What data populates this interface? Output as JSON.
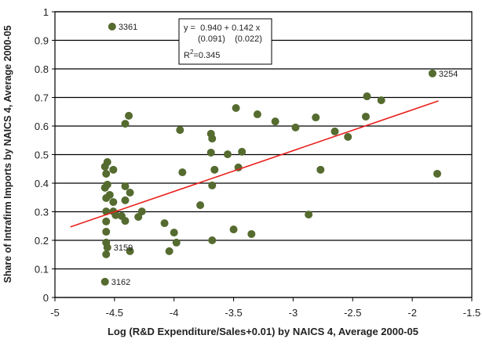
{
  "chart_data": {
    "type": "scatter",
    "x_label": "Log (R&D Expenditure/Sales+0.01) by NAICS 4, Average 2000-05",
    "y_label": "Share of Intrafirm Imports by NAICS 4, Average 2000-05",
    "xlim": [
      -5,
      -1.5
    ],
    "xticks": [
      -5,
      -4.5,
      -4,
      -3.5,
      -3,
      -2.5,
      -2,
      -1.5
    ],
    "ylim": [
      0,
      1
    ],
    "yticks": [
      0,
      0.1,
      0.2,
      0.3,
      0.4,
      0.5,
      0.6,
      0.7,
      0.8,
      0.9,
      1
    ],
    "grid": true,
    "series": [
      {
        "color": "#556b2f",
        "x": [
          -4.52,
          -1.83,
          -1.79,
          -2.38,
          -2.26,
          -2.39,
          -2.81,
          -2.65,
          -2.54,
          -2.98,
          -3.15,
          -3.3,
          -3.48,
          -2.77,
          -2.87,
          -3.43,
          -3.55,
          -3.46,
          -3.35,
          -3.5,
          -3.68,
          -3.69,
          -3.68,
          -3.69,
          -3.66,
          -3.68,
          -3.78,
          -3.95,
          -3.93,
          -4.0,
          -3.98,
          -4.04,
          -4.08,
          -4.38,
          -4.41,
          -4.37,
          -4.41,
          -4.41,
          -4.27,
          -4.3,
          -4.37,
          -4.56,
          -4.51,
          -4.57,
          -4.54,
          -4.51,
          -4.56,
          -4.57,
          -4.57,
          -4.57,
          -4.57,
          -4.57,
          -4.58,
          -4.56,
          -4.49,
          -4.44,
          -4.41,
          -4.51,
          -4.58,
          -4.58,
          -4.57
        ],
        "values": [
          0.948,
          0.784,
          0.433,
          0.704,
          0.69,
          0.633,
          0.63,
          0.581,
          0.562,
          0.595,
          0.616,
          0.641,
          0.663,
          0.447,
          0.29,
          0.51,
          0.501,
          0.455,
          0.222,
          0.238,
          0.2,
          0.573,
          0.556,
          0.507,
          0.447,
          0.392,
          0.323,
          0.586,
          0.438,
          0.227,
          0.192,
          0.162,
          0.26,
          0.636,
          0.608,
          0.367,
          0.389,
          0.34,
          0.301,
          0.282,
          0.162,
          0.474,
          0.447,
          0.433,
          0.359,
          0.334,
          0.395,
          0.301,
          0.266,
          0.23,
          0.192,
          0.151,
          0.055,
          0.175,
          0.288,
          0.285,
          0.268,
          0.301,
          0.458,
          0.384,
          0.348
        ],
        "labels": [
          "3361",
          "3254",
          null,
          null,
          null,
          null,
          null,
          null,
          null,
          null,
          null,
          null,
          null,
          null,
          null,
          null,
          null,
          null,
          null,
          null,
          null,
          null,
          null,
          null,
          null,
          null,
          null,
          null,
          null,
          null,
          null,
          null,
          null,
          null,
          null,
          null,
          null,
          null,
          null,
          null,
          null,
          null,
          null,
          null,
          null,
          null,
          null,
          null,
          null,
          null,
          null,
          null,
          "3162",
          "3159",
          null,
          null,
          null,
          null,
          null,
          null,
          null
        ]
      }
    ],
    "fit_line": {
      "color": "#e8201c",
      "x": [
        -4.87,
        -1.78
      ],
      "values": [
        0.247,
        0.688
      ]
    },
    "annotation": {
      "equation": "y =  0.940 + 0.142 x",
      "std_errors": "(0.091)    (0.022)",
      "r2": [
        "R",
        "2",
        "=0.345"
      ]
    }
  }
}
